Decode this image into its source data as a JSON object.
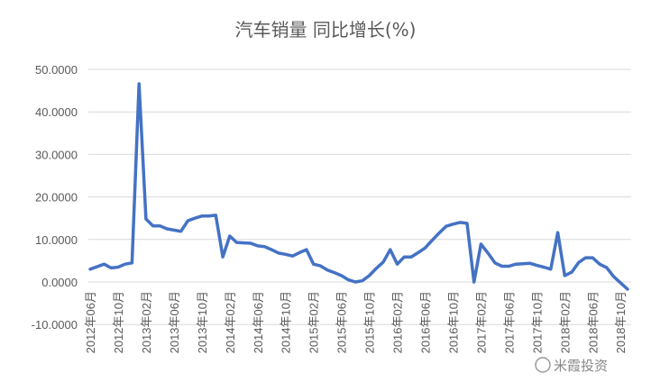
{
  "chart_data": {
    "type": "line",
    "title": "汽车销量 同比增长(%)",
    "xlabel": "",
    "ylabel": "",
    "ylim": [
      -10,
      50
    ],
    "yticks": [
      -10,
      0,
      10,
      20,
      30,
      40,
      50
    ],
    "ytick_labels": [
      "-10.0000",
      "0.0000",
      "10.0000",
      "20.0000",
      "30.0000",
      "40.0000",
      "50.0000"
    ],
    "grid": true,
    "legend": "none",
    "line_color": "#4472C4",
    "x_start": "2012-06",
    "x_tick_labels": [
      "2012年06月",
      "2012年10月",
      "2013年02月",
      "2013年06月",
      "2013年10月",
      "2014年02月",
      "2014年06月",
      "2014年10月",
      "2015年02月",
      "2015年06月",
      "2015年10月",
      "2016年02月",
      "2016年06月",
      "2016年10月",
      "2017年02月",
      "2017年06月",
      "2017年10月",
      "2018年02月",
      "2018年06月",
      "2018年10月"
    ],
    "x": [
      "2012-06",
      "2012-07",
      "2012-08",
      "2012-09",
      "2012-10",
      "2012-11",
      "2012-12",
      "2013-01",
      "2013-02",
      "2013-03",
      "2013-04",
      "2013-05",
      "2013-06",
      "2013-07",
      "2013-08",
      "2013-09",
      "2013-10",
      "2013-11",
      "2013-12",
      "2014-01",
      "2014-02",
      "2014-03",
      "2014-04",
      "2014-05",
      "2014-06",
      "2014-07",
      "2014-08",
      "2014-09",
      "2014-10",
      "2014-11",
      "2014-12",
      "2015-01",
      "2015-02",
      "2015-03",
      "2015-04",
      "2015-05",
      "2015-06",
      "2015-07",
      "2015-08",
      "2015-09",
      "2015-10",
      "2015-11",
      "2015-12",
      "2016-01",
      "2016-02",
      "2016-03",
      "2016-04",
      "2016-05",
      "2016-06",
      "2016-07",
      "2016-08",
      "2016-09",
      "2016-10",
      "2016-11",
      "2016-12",
      "2017-01",
      "2017-02",
      "2017-03",
      "2017-04",
      "2017-05",
      "2017-06",
      "2017-07",
      "2017-08",
      "2017-09",
      "2017-10",
      "2017-11",
      "2017-12",
      "2018-01",
      "2018-02",
      "2018-03",
      "2018-04",
      "2018-05",
      "2018-06",
      "2018-07",
      "2018-08",
      "2018-09",
      "2018-10",
      "2018-11"
    ],
    "values": [
      3.0,
      3.6,
      4.2,
      3.3,
      3.5,
      4.2,
      4.5,
      46.6,
      14.8,
      13.2,
      13.2,
      12.5,
      12.2,
      11.9,
      14.4,
      15.0,
      15.5,
      15.5,
      15.7,
      5.9,
      10.8,
      9.3,
      9.2,
      9.1,
      8.5,
      8.3,
      7.6,
      6.8,
      6.5,
      6.1,
      6.9,
      7.6,
      4.2,
      3.8,
      2.8,
      2.2,
      1.5,
      0.5,
      0.0,
      0.3,
      1.5,
      3.2,
      4.7,
      7.6,
      4.2,
      5.9,
      5.9,
      6.9,
      8.0,
      9.8,
      11.5,
      13.1,
      13.6,
      14.0,
      13.8,
      0.0,
      8.9,
      6.8,
      4.5,
      3.7,
      3.7,
      4.2,
      4.3,
      4.4,
      3.9,
      3.5,
      3.0,
      11.6,
      1.5,
      2.3,
      4.6,
      5.7,
      5.7,
      4.2,
      3.4,
      1.3,
      -0.2,
      -1.7
    ]
  },
  "watermark": "米霞投资"
}
